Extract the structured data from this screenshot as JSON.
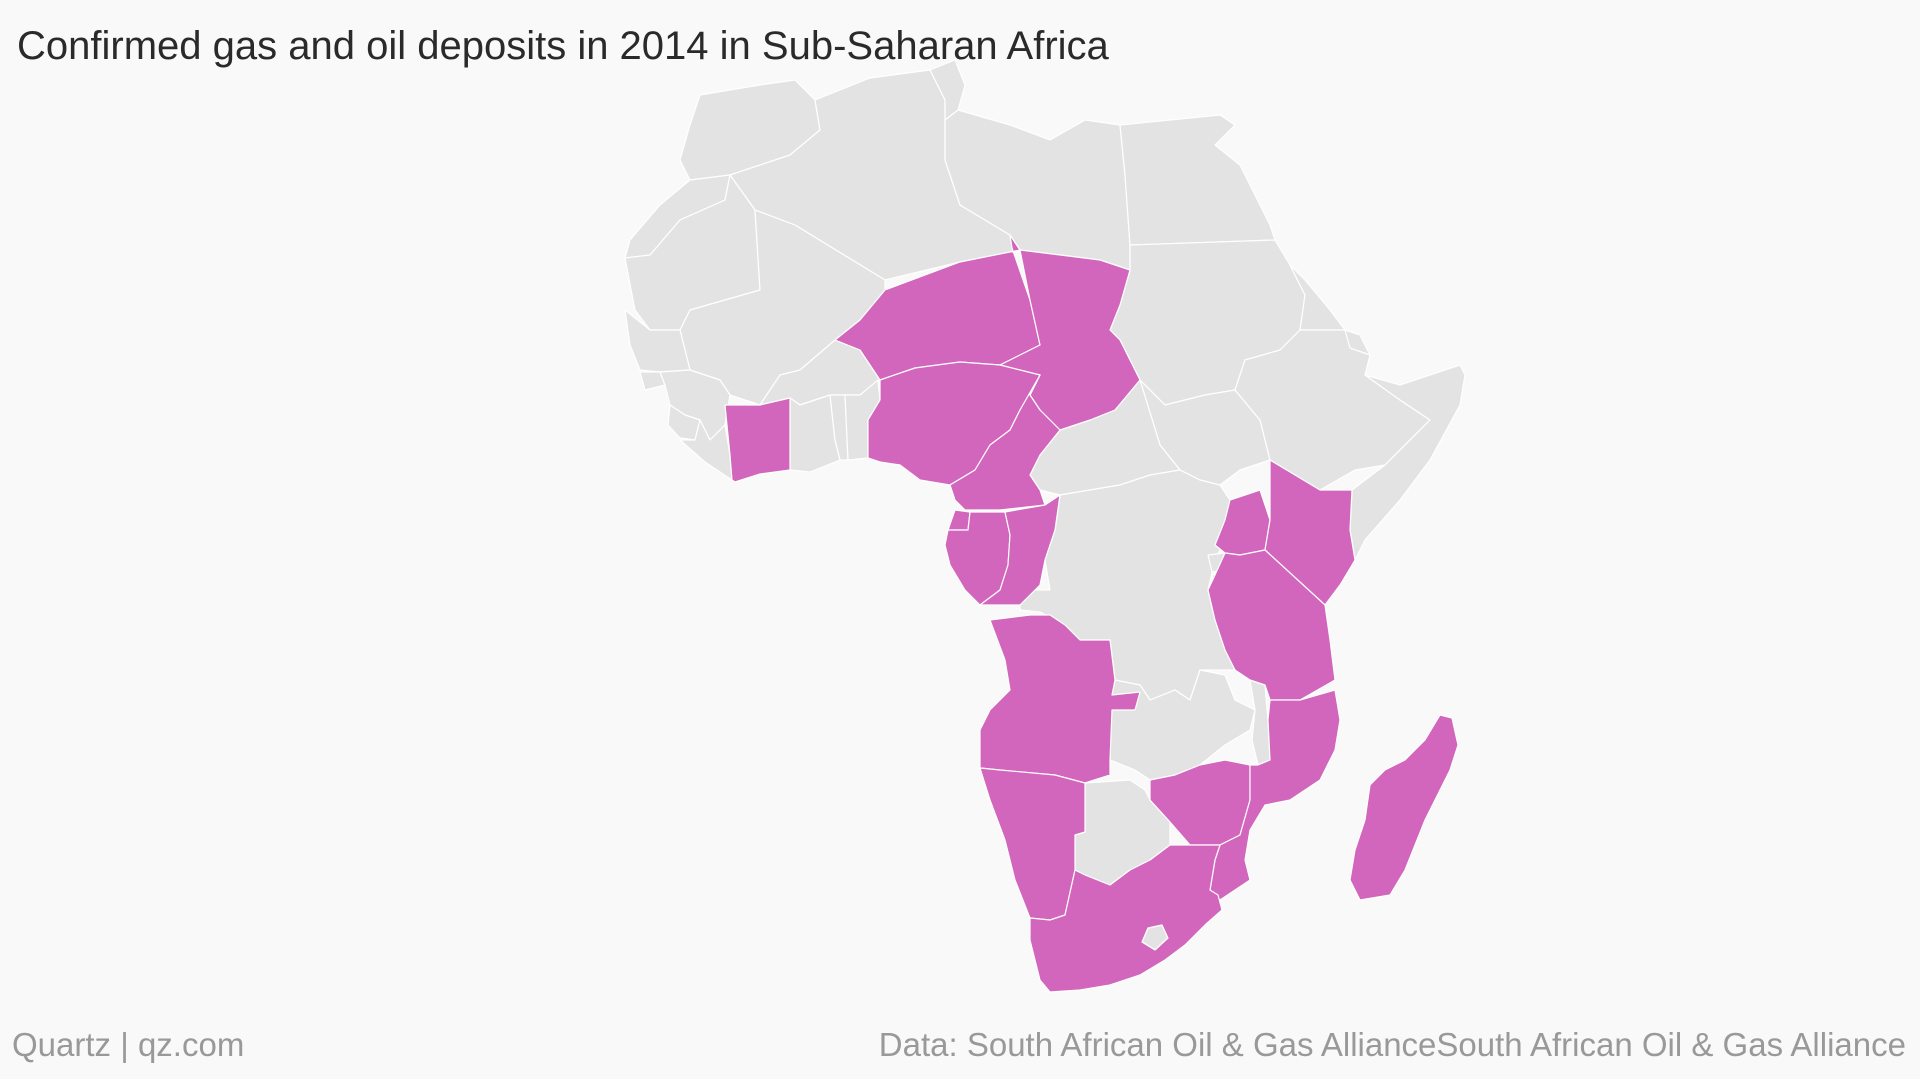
{
  "title": "Confirmed gas and oil deposits in 2014 in Sub-Saharan Africa",
  "footer": {
    "brand": "Quartz | qz.com",
    "source": "Data: South African Oil & Gas AllianceSouth African Oil & Gas Alliance"
  },
  "colors": {
    "background": "#f9f9f9",
    "land": "#e3e3e3",
    "border": "#ffffff",
    "highlight": "#d265bc",
    "text": "#2a2a2a",
    "footer_text": "#999999"
  },
  "map_data": {
    "region": "Africa",
    "highlighted_countries": [
      "Niger",
      "Chad",
      "Nigeria",
      "Cameroon",
      "Côte d'Ivoire",
      "Equatorial Guinea",
      "Gabon",
      "Republic of the Congo",
      "Uganda",
      "Kenya",
      "Tanzania",
      "Angola",
      "Namibia",
      "Zimbabwe",
      "Mozambique",
      "South Africa",
      "Madagascar"
    ],
    "other_countries": [
      "Morocco",
      "Western Sahara",
      "Algeria",
      "Tunisia",
      "Libya",
      "Egypt",
      "Mauritania",
      "Mali",
      "Senegal",
      "Gambia",
      "Guinea-Bissau",
      "Guinea",
      "Sierra Leone",
      "Liberia",
      "Burkina Faso",
      "Ghana",
      "Togo",
      "Benin",
      "Sudan",
      "South Sudan",
      "Eritrea",
      "Ethiopia",
      "Djibouti",
      "Somalia",
      "Central African Republic",
      "Democratic Republic of the Congo",
      "Rwanda",
      "Burundi",
      "Zambia",
      "Malawi",
      "Botswana",
      "Lesotho",
      "Swaziland"
    ]
  }
}
